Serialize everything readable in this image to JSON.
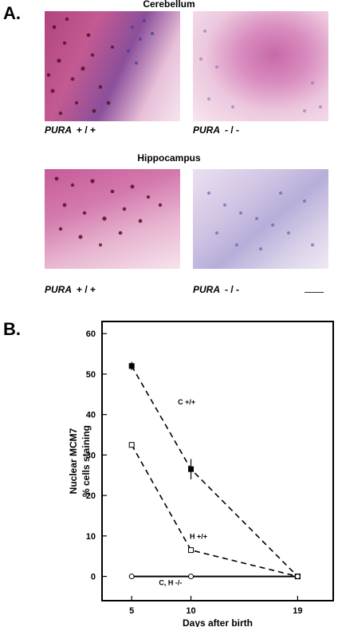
{
  "panel_a": {
    "label": "A.",
    "sections": [
      {
        "title": "Cerebellum",
        "images": [
          {
            "gene": "PURA",
            "genotype": "+ / +",
            "stain": "positive"
          },
          {
            "gene": "PURA",
            "genotype": "- / -",
            "stain": "negative"
          }
        ]
      },
      {
        "title": "Hippocampus",
        "images": [
          {
            "gene": "PURA",
            "genotype": "+ / +",
            "stain": "positive"
          },
          {
            "gene": "PURA",
            "genotype": "- / -",
            "stain": "negative"
          }
        ]
      }
    ]
  },
  "panel_b": {
    "label": "B."
  },
  "chart_data": {
    "type": "line",
    "xlabel": "Days after birth",
    "ylabel_lines": [
      "Nuclear MCM7",
      "% cells staining"
    ],
    "x_ticks": [
      5,
      10,
      19
    ],
    "y_ticks": [
      0,
      10,
      20,
      30,
      40,
      50,
      60
    ],
    "xlim": [
      2.5,
      22
    ],
    "ylim": [
      -6,
      63
    ],
    "series": [
      {
        "name": "C +/+",
        "style": "dashed",
        "marker": "filled-square",
        "points": [
          [
            5,
            52
          ],
          [
            10,
            26.5
          ],
          [
            19,
            0
          ]
        ],
        "errors": [
          1,
          2.5,
          0
        ]
      },
      {
        "name": "H +/+",
        "style": "dashed",
        "marker": "open-square",
        "points": [
          [
            5,
            32.5
          ],
          [
            10,
            6.5
          ],
          [
            19,
            0
          ]
        ],
        "errors": [
          0.5,
          0,
          0
        ]
      },
      {
        "name": "C, H  -/-",
        "style": "solid",
        "marker": "open-circle",
        "points": [
          [
            5,
            0
          ],
          [
            10,
            0
          ],
          [
            19,
            0
          ]
        ],
        "errors": [
          0,
          0,
          0
        ]
      }
    ],
    "series_label_positions": [
      [
        8.9,
        42.5
      ],
      [
        9.9,
        9.3
      ],
      [
        7.3,
        -2.2
      ]
    ]
  }
}
